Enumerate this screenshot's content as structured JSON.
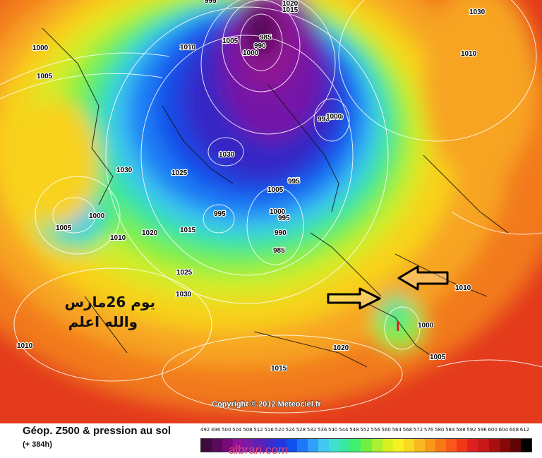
{
  "map": {
    "copyright": "Copyright © 2012 Meteociel.fr",
    "annotation_line1": "يوم 26مارس",
    "annotation_line2": "والله اعلم",
    "isobar_labels": [
      "995",
      "1020",
      "1015",
      "1030",
      "1000",
      "1010",
      "1005",
      "985",
      "990",
      "1000",
      "1005",
      "1010",
      "1025",
      "1000",
      "990",
      "995",
      "1030",
      "1030",
      "1000",
      "995",
      "1025",
      "1005",
      "1005",
      "1000",
      "1010",
      "1020",
      "1015",
      "995",
      "1000",
      "995",
      "990",
      "985",
      "1025",
      "1030",
      "1010",
      "1010",
      "1000",
      "1005",
      "1020",
      "1015"
    ],
    "marker": "I",
    "colors": {
      "arrow": "#000000",
      "marker": "#e02020"
    }
  },
  "legend": {
    "title": "Géop. Z500 & pression au sol",
    "subtitle": "(+ 384h)",
    "scale_values": [
      "492",
      "496",
      "500",
      "504",
      "508",
      "512",
      "516",
      "520",
      "524",
      "528",
      "532",
      "536",
      "540",
      "544",
      "548",
      "552",
      "556",
      "560",
      "564",
      "568",
      "572",
      "576",
      "580",
      "584",
      "588",
      "592",
      "596",
      "600",
      "604",
      "608",
      "612"
    ],
    "scale_colors": [
      "#3d0a3d",
      "#5a0a5a",
      "#7a0a7a",
      "#92129a",
      "#7a1aa8",
      "#5a20b8",
      "#3a2ccc",
      "#2038e0",
      "#1050f0",
      "#1c78f8",
      "#30a0f8",
      "#40c8f0",
      "#40e0d0",
      "#38e8a0",
      "#40f070",
      "#70f040",
      "#a8f030",
      "#d8f020",
      "#f8f020",
      "#f8d820",
      "#f8b820",
      "#f89818",
      "#f87818",
      "#f85818",
      "#f03818",
      "#e02020",
      "#c81818",
      "#a81010",
      "#880808",
      "#600404",
      "#000000"
    ],
    "watermark": "albrari.com"
  }
}
